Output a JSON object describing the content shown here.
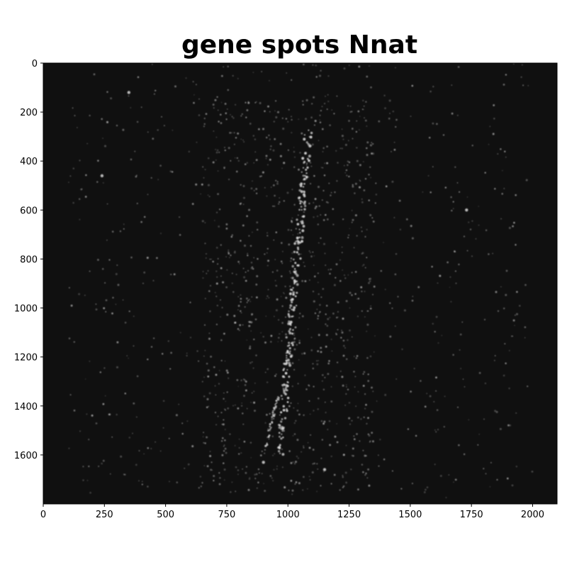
{
  "title": "gene spots Nnat",
  "axes": {
    "x_ticks": [
      "0",
      "250",
      "500",
      "750",
      "1000",
      "1250",
      "1500",
      "1750",
      "2000"
    ],
    "y_ticks": [
      "0",
      "200",
      "400",
      "600",
      "800",
      "1000",
      "1200",
      "1400",
      "1600"
    ],
    "x_range": [
      0,
      2100
    ],
    "y_range": [
      0,
      1800
    ],
    "y_inverted": true
  },
  "image": {
    "description_colormap": "grayscale",
    "background_color": "#101010",
    "spot_color": "#d8d8d8"
  }
}
